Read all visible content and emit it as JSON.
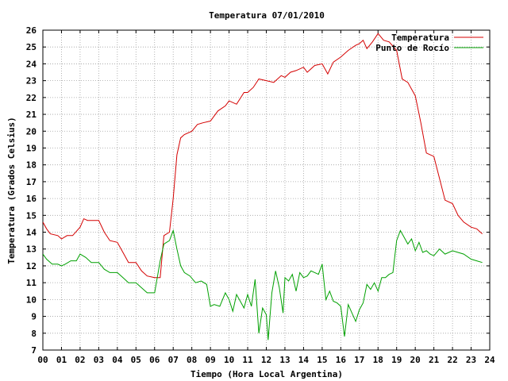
{
  "chart_data": {
    "type": "line",
    "title": "Temperatura 07/01/2010",
    "xlabel": "Tiempo (Hora Local Argentina)",
    "ylabel": "Temperatura (Grados Celsius)",
    "xlim": [
      0,
      24
    ],
    "ylim": [
      7,
      26
    ],
    "grid": true,
    "legend_position": "top-right",
    "x_ticks": [
      0,
      1,
      2,
      3,
      4,
      5,
      6,
      7,
      8,
      9,
      10,
      11,
      12,
      13,
      14,
      15,
      16,
      17,
      18,
      19,
      20,
      21,
      22,
      23,
      24
    ],
    "x_tick_labels": [
      "00",
      "01",
      "02",
      "03",
      "04",
      "05",
      "06",
      "07",
      "08",
      "09",
      "10",
      "11",
      "12",
      "13",
      "14",
      "15",
      "16",
      "17",
      "18",
      "19",
      "20",
      "21",
      "22",
      "23",
      "24"
    ],
    "y_ticks": [
      7,
      8,
      9,
      10,
      11,
      12,
      13,
      14,
      15,
      16,
      17,
      18,
      19,
      20,
      21,
      22,
      23,
      24,
      25,
      26
    ],
    "series": [
      {
        "name": "Temperatura",
        "color": "#d40000",
        "x": [
          0.0,
          0.2,
          0.4,
          0.8,
          1.0,
          1.3,
          1.6,
          2.0,
          2.2,
          2.4,
          3.0,
          3.3,
          3.6,
          4.0,
          4.3,
          4.6,
          5.0,
          5.3,
          5.6,
          6.0,
          6.3,
          6.5,
          6.8,
          7.0,
          7.2,
          7.4,
          7.6,
          8.0,
          8.3,
          8.6,
          9.0,
          9.4,
          9.8,
          10.0,
          10.4,
          10.8,
          11.0,
          11.3,
          11.6,
          12.0,
          12.4,
          12.8,
          13.0,
          13.3,
          13.6,
          14.0,
          14.2,
          14.6,
          15.0,
          15.3,
          15.6,
          16.0,
          16.4,
          16.8,
          17.0,
          17.2,
          17.4,
          17.7,
          18.0,
          18.3,
          18.6,
          19.0,
          19.3,
          19.6,
          20.0,
          20.3,
          20.6,
          21.0,
          21.3,
          21.6,
          22.0,
          22.3,
          22.6,
          23.0,
          23.3,
          23.6
        ],
        "values": [
          14.6,
          14.2,
          13.9,
          13.8,
          13.6,
          13.8,
          13.8,
          14.3,
          14.8,
          14.7,
          14.7,
          14.0,
          13.5,
          13.4,
          12.8,
          12.2,
          12.2,
          11.7,
          11.4,
          11.3,
          11.3,
          13.8,
          14.0,
          16.0,
          18.6,
          19.6,
          19.8,
          20.0,
          20.4,
          20.5,
          20.6,
          21.2,
          21.5,
          21.8,
          21.6,
          22.3,
          22.3,
          22.6,
          23.1,
          23.0,
          22.9,
          23.3,
          23.2,
          23.5,
          23.6,
          23.8,
          23.5,
          23.9,
          24.0,
          23.4,
          24.1,
          24.4,
          24.8,
          25.1,
          25.2,
          25.4,
          24.9,
          25.3,
          25.8,
          25.4,
          25.3,
          24.8,
          23.1,
          22.9,
          22.1,
          20.5,
          18.7,
          18.5,
          17.2,
          15.9,
          15.7,
          15.0,
          14.6,
          14.3,
          14.2,
          13.9
        ]
      },
      {
        "name": "Punto de Rocío",
        "color": "#00a000",
        "x": [
          0.0,
          0.2,
          0.5,
          0.8,
          1.0,
          1.2,
          1.5,
          1.8,
          2.0,
          2.3,
          2.6,
          3.0,
          3.3,
          3.6,
          4.0,
          4.3,
          4.6,
          5.0,
          5.3,
          5.6,
          6.0,
          6.3,
          6.5,
          6.8,
          7.0,
          7.2,
          7.4,
          7.6,
          7.9,
          8.2,
          8.5,
          8.8,
          9.0,
          9.2,
          9.5,
          9.8,
          10.0,
          10.2,
          10.4,
          10.6,
          10.8,
          11.0,
          11.2,
          11.4,
          11.6,
          11.8,
          12.0,
          12.1,
          12.3,
          12.5,
          12.7,
          12.9,
          13.0,
          13.2,
          13.4,
          13.6,
          13.8,
          14.0,
          14.2,
          14.4,
          14.6,
          14.8,
          15.0,
          15.2,
          15.4,
          15.6,
          15.8,
          16.0,
          16.2,
          16.4,
          16.6,
          16.8,
          17.0,
          17.2,
          17.4,
          17.6,
          17.8,
          18.0,
          18.2,
          18.4,
          18.6,
          18.8,
          19.0,
          19.2,
          19.4,
          19.6,
          19.8,
          20.0,
          20.2,
          20.4,
          20.6,
          20.8,
          21.0,
          21.3,
          21.6,
          22.0,
          22.3,
          22.6,
          23.0,
          23.3,
          23.6
        ],
        "values": [
          12.7,
          12.4,
          12.1,
          12.1,
          12.0,
          12.1,
          12.3,
          12.3,
          12.7,
          12.5,
          12.2,
          12.2,
          11.8,
          11.6,
          11.6,
          11.3,
          11.0,
          11.0,
          10.7,
          10.4,
          10.4,
          12.3,
          13.3,
          13.5,
          14.1,
          13.0,
          12.0,
          11.6,
          11.4,
          11.0,
          11.1,
          10.9,
          9.6,
          9.7,
          9.6,
          10.4,
          10.0,
          9.3,
          10.3,
          9.9,
          9.5,
          10.3,
          9.6,
          11.2,
          8.0,
          9.5,
          9.1,
          7.6,
          10.4,
          11.7,
          10.7,
          9.2,
          11.3,
          11.1,
          11.5,
          10.5,
          11.6,
          11.3,
          11.4,
          11.7,
          11.6,
          11.5,
          12.1,
          10.0,
          10.5,
          9.9,
          9.8,
          9.6,
          7.8,
          9.7,
          9.2,
          8.7,
          9.4,
          9.8,
          10.9,
          10.6,
          11.0,
          10.5,
          11.3,
          11.3,
          11.5,
          11.6,
          13.5,
          14.1,
          13.7,
          13.3,
          13.6,
          12.9,
          13.4,
          12.8,
          12.9,
          12.7,
          12.6,
          13.0,
          12.7,
          12.9,
          12.8,
          12.7,
          12.4,
          12.3,
          12.2
        ]
      }
    ]
  }
}
